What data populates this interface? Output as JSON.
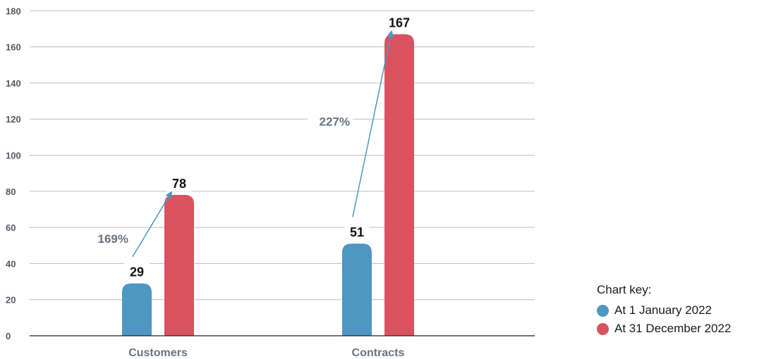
{
  "chart_data": {
    "type": "bar",
    "categories": [
      "Customers",
      "Contracts"
    ],
    "series": [
      {
        "name": "At 1 January 2022",
        "values": [
          29,
          51
        ],
        "color": "#4d97c2"
      },
      {
        "name": "At 31 December 2022",
        "values": [
          78,
          167
        ],
        "color": "#d9535f"
      }
    ],
    "ylim": [
      0,
      180
    ],
    "yticks": [
      0,
      20,
      40,
      60,
      80,
      100,
      120,
      140,
      160,
      180
    ],
    "grid": true,
    "annotations": [
      "169%",
      "227%"
    ],
    "legend": {
      "title": "Chart key:",
      "placement": "bottom-right"
    }
  }
}
